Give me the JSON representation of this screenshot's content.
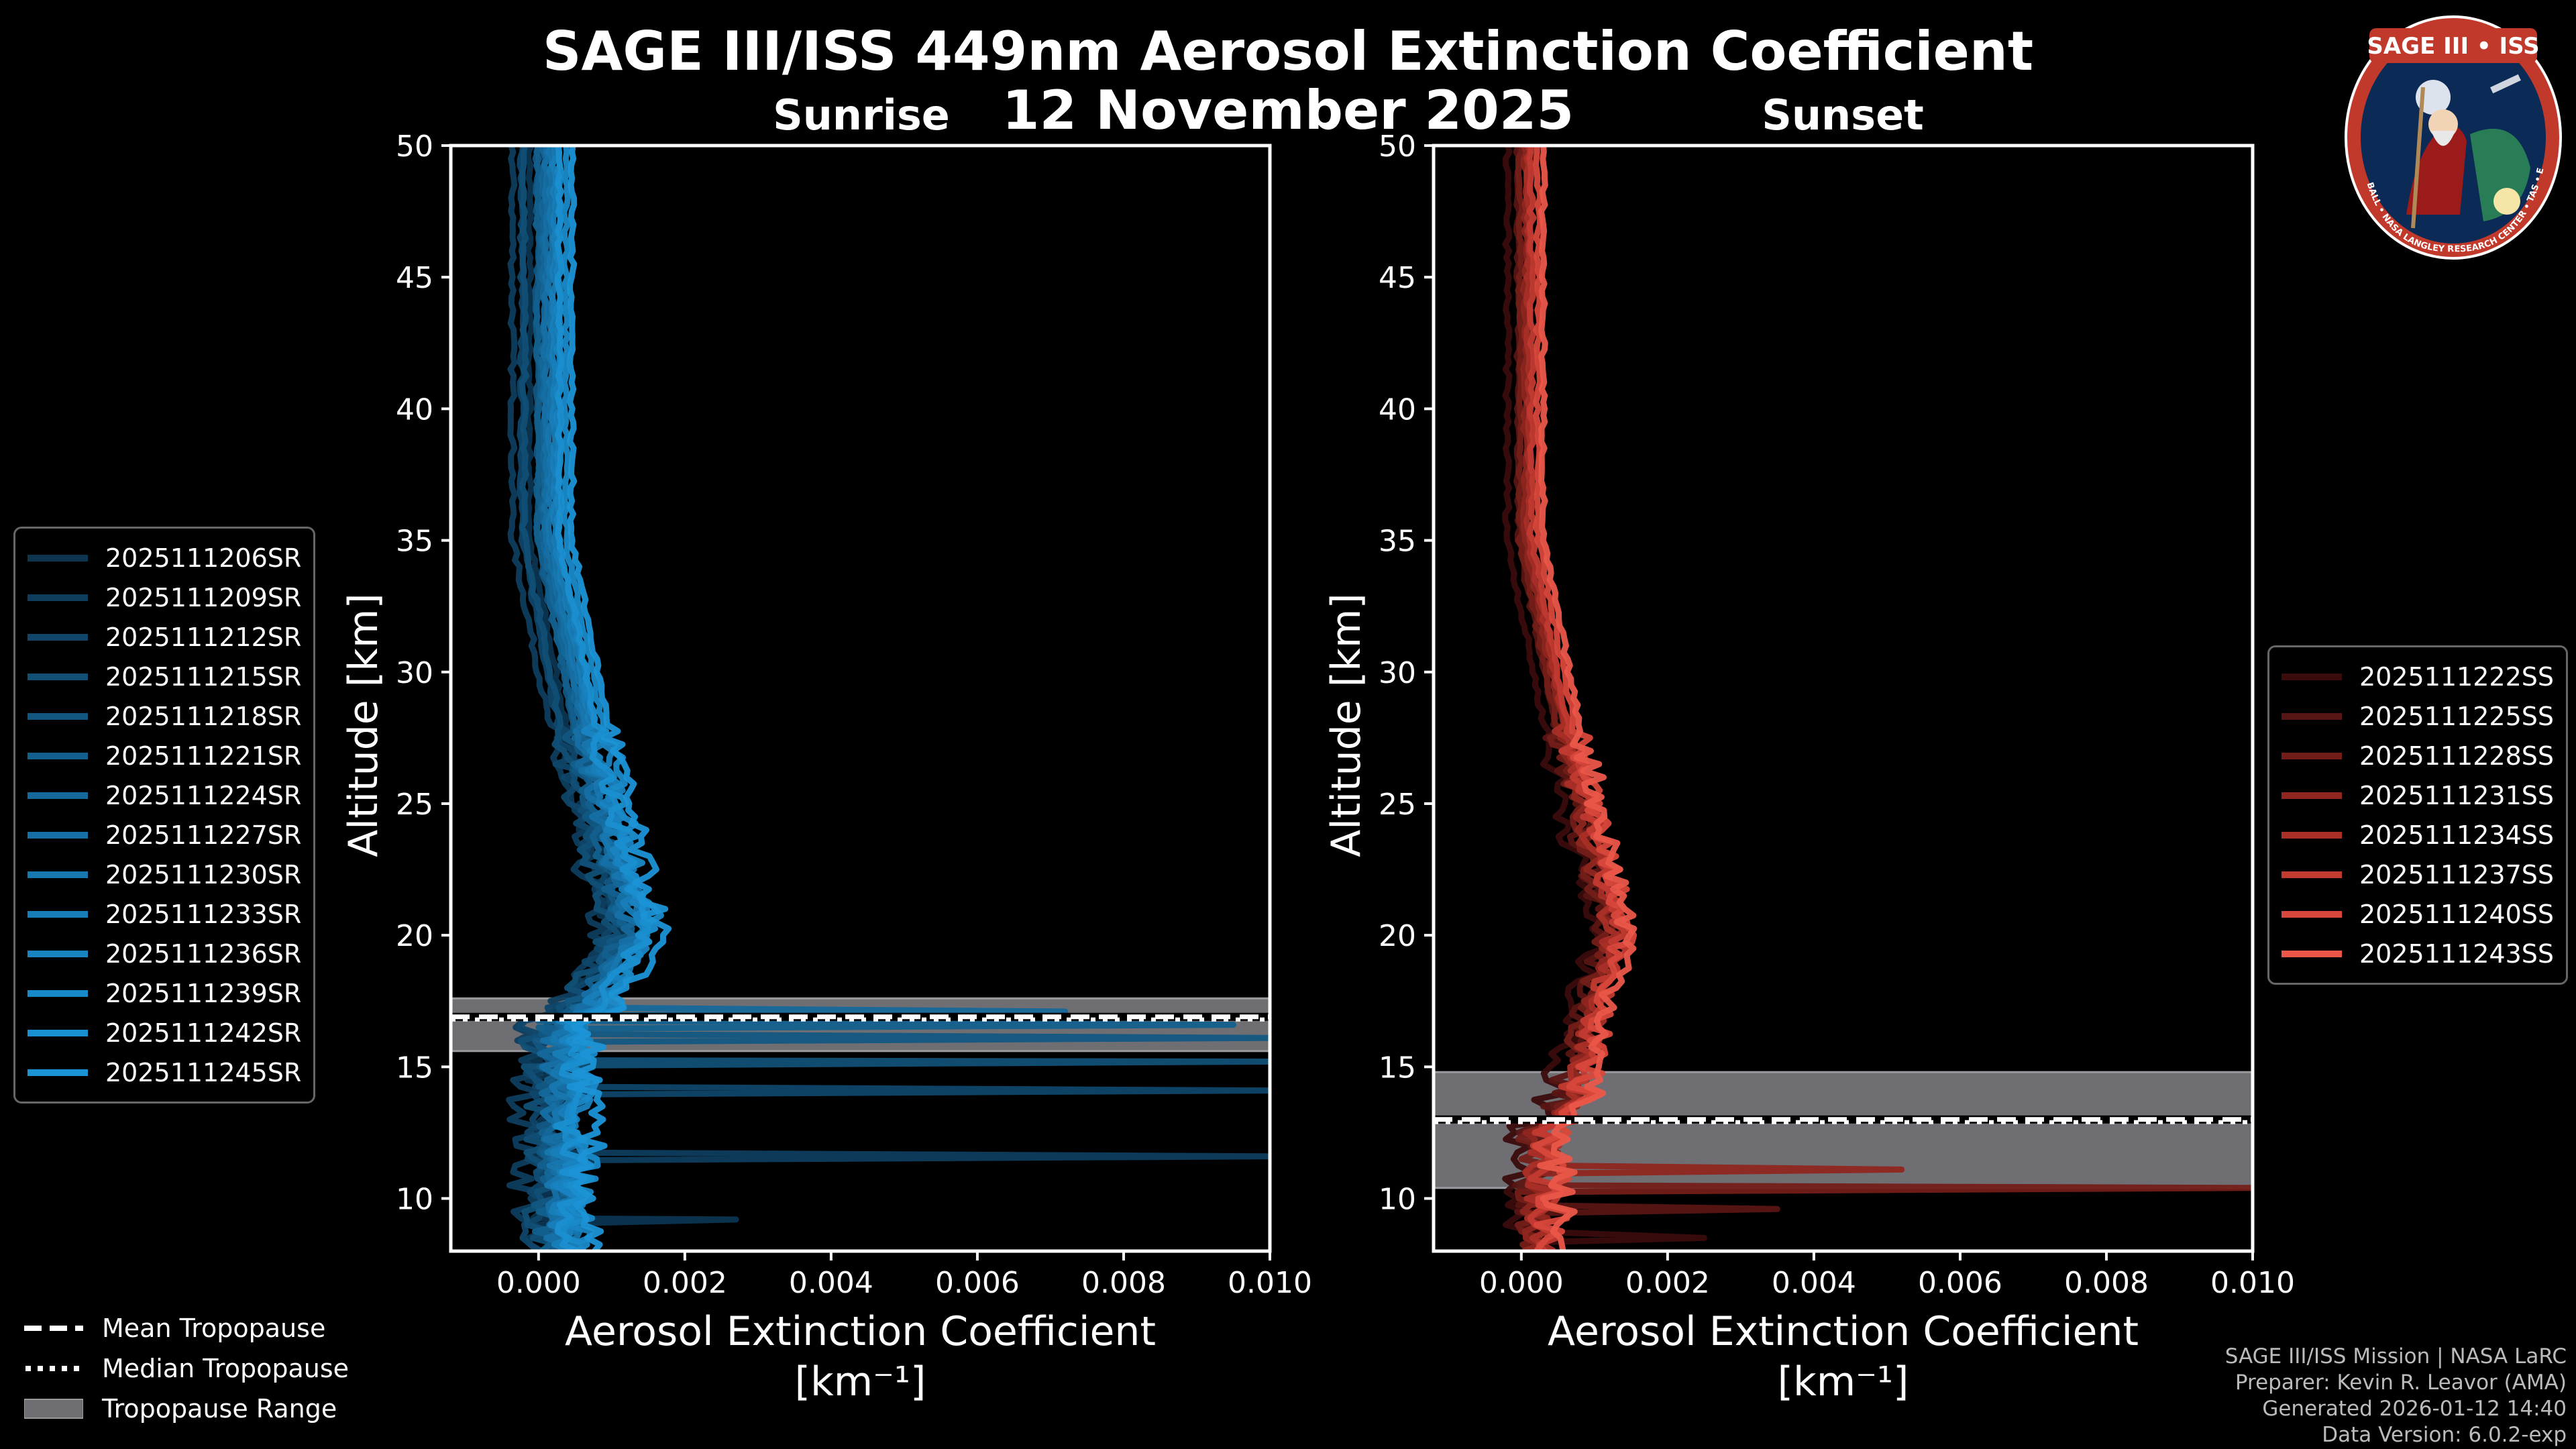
{
  "figure": {
    "title": "SAGE III/ISS 449nm Aerosol Extinction Coefficient",
    "date": "12 November 2025"
  },
  "credits": [
    "SAGE III/ISS Mission | NASA LaRC",
    "Preparer: Kevin R. Leavor (AMA)",
    "Generated 2026-01-12 14:40",
    "Data Version: 6.0.2-exp"
  ],
  "logo": {
    "text": "SAGE III • ISS",
    "ring_text": "BALL • NASA LANGLEY RESEARCH CENTER • TAS • ESA"
  },
  "tropopause_legend": [
    {
      "label": "Mean Tropopause",
      "style": "dashed"
    },
    {
      "label": "Median Tropopause",
      "style": "dotted"
    },
    {
      "label": "Tropopause Range",
      "style": "band"
    }
  ],
  "chart_data": [
    {
      "type": "line",
      "title": "Sunrise",
      "xlabel": "Aerosol Extinction Coefficient",
      "xunit": "[km⁻¹]",
      "ylabel": "Altitude [km]",
      "xlim": [
        -0.0012,
        0.01
      ],
      "ylim": [
        8,
        50
      ],
      "xticks": [
        "0.000",
        "0.002",
        "0.004",
        "0.006",
        "0.008",
        "0.010"
      ],
      "xtick_values": [
        0,
        0.002,
        0.004,
        0.006,
        0.008,
        0.01
      ],
      "yticks": [
        10,
        15,
        20,
        25,
        30,
        35,
        40,
        45,
        50
      ],
      "tropopause": {
        "mean": 16.9,
        "median": 16.8,
        "min": 15.6,
        "max": 17.6
      },
      "spike_altitudes": [
        9.2,
        11.6,
        14.1,
        15.2,
        16.1,
        16.6,
        17.1
      ],
      "spike_values": [
        0.0027,
        0.01,
        0.01,
        0.01,
        0.01,
        0.0095,
        0.0072
      ],
      "base_color": "#1a8fd0",
      "series": [
        {
          "name": "2025111206SR",
          "color": "#0c3550"
        },
        {
          "name": "2025111209SR",
          "color": "#0e3d5d"
        },
        {
          "name": "2025111212SR",
          "color": "#0f4669"
        },
        {
          "name": "2025111215SR",
          "color": "#114f76"
        },
        {
          "name": "2025111218SR",
          "color": "#125782"
        },
        {
          "name": "2025111221SR",
          "color": "#13608e"
        },
        {
          "name": "2025111224SR",
          "color": "#15689a"
        },
        {
          "name": "2025111227SR",
          "color": "#1670a5"
        },
        {
          "name": "2025111230SR",
          "color": "#1777af"
        },
        {
          "name": "2025111233SR",
          "color": "#187eb9"
        },
        {
          "name": "2025111236SR",
          "color": "#1984c2"
        },
        {
          "name": "2025111239SR",
          "color": "#198ac9"
        },
        {
          "name": "2025111242SR",
          "color": "#1a8fd0"
        },
        {
          "name": "2025111245SR",
          "color": "#1b94d6"
        }
      ]
    },
    {
      "type": "line",
      "title": "Sunset",
      "xlabel": "Aerosol Extinction Coefficient",
      "xunit": "[km⁻¹]",
      "ylabel": "Altitude [km]",
      "xlim": [
        -0.0012,
        0.01
      ],
      "ylim": [
        8,
        50
      ],
      "xticks": [
        "0.000",
        "0.002",
        "0.004",
        "0.006",
        "0.008",
        "0.010"
      ],
      "xtick_values": [
        0,
        0.002,
        0.004,
        0.006,
        0.008,
        0.01
      ],
      "yticks": [
        10,
        15,
        20,
        25,
        30,
        35,
        40,
        45,
        50
      ],
      "tropopause": {
        "mean": 13.0,
        "median": 12.9,
        "min": 10.4,
        "max": 14.8
      },
      "spike_altitudes": [
        8.5,
        9.6,
        10.4,
        11.1
      ],
      "spike_values": [
        0.0025,
        0.0035,
        0.01,
        0.0052
      ],
      "base_color": "#e8574a",
      "series": [
        {
          "name": "2025111222SS",
          "color": "#3a0c0c"
        },
        {
          "name": "2025111225SS",
          "color": "#571513"
        },
        {
          "name": "2025111228SS",
          "color": "#731d19"
        },
        {
          "name": "2025111231SS",
          "color": "#8f2620"
        },
        {
          "name": "2025111234SS",
          "color": "#a92f27"
        },
        {
          "name": "2025111237SS",
          "color": "#c23a30"
        },
        {
          "name": "2025111240SS",
          "color": "#d8473b"
        },
        {
          "name": "2025111243SS",
          "color": "#ea5749"
        }
      ]
    }
  ]
}
